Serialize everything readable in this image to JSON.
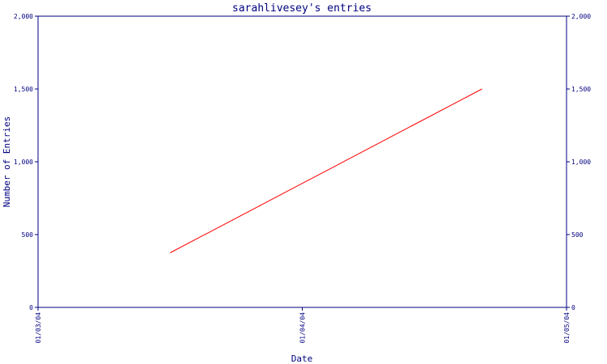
{
  "chart_data": {
    "type": "line",
    "title": "sarahlivesey's entries",
    "xlabel": "Date",
    "ylabel": "Number of Entries",
    "x_ticks": [
      "01/03/04",
      "01/04/04",
      "01/05/04"
    ],
    "xlim": [
      "01/03/04",
      "01/05/04"
    ],
    "ylim": [
      0,
      2000
    ],
    "y_ticks": [
      0,
      500,
      1000,
      1500,
      2000
    ],
    "y_tick_labels": [
      "0",
      "500",
      "1,000",
      "1,500",
      "2,000"
    ],
    "grid": false,
    "legend": "none",
    "series": [
      {
        "color": "#ff0000",
        "points": [
          {
            "x": "01/03/04 + 0.5 interval",
            "y": 375
          },
          {
            "x": "01/04/04 + 0.68 interval",
            "y": 1500
          }
        ]
      }
    ]
  },
  "colors": {
    "axis": "#000080",
    "line": "#ff0000",
    "background": "#ffffff"
  }
}
